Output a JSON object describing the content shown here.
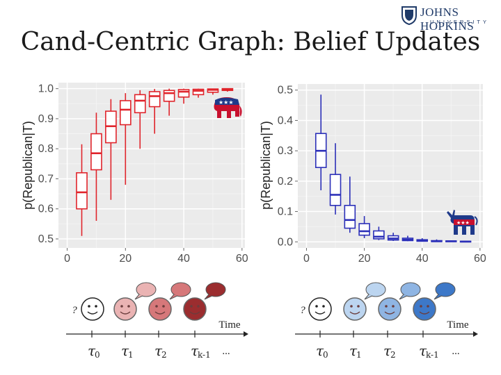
{
  "slide": {
    "title": "Cand-Centric Graph: Belief Updates",
    "logo": {
      "main": "JOHNS HOPKINS",
      "sub": "UNIVERSITY"
    }
  },
  "chart_data": [
    {
      "type": "box",
      "ylabel": "p(Republican|T)",
      "xlabel": "",
      "xlim": [
        -3,
        61
      ],
      "ylim": [
        0.47,
        1.02
      ],
      "xticks": [
        0,
        20,
        40,
        60
      ],
      "yticks": [
        0.5,
        0.6,
        0.7,
        0.8,
        0.9,
        1.0
      ],
      "color": "#e0242b",
      "boxes": [
        {
          "x": 5,
          "min": 0.51,
          "q1": 0.6,
          "median": 0.655,
          "q3": 0.72,
          "max": 0.815
        },
        {
          "x": 10,
          "min": 0.56,
          "q1": 0.73,
          "median": 0.785,
          "q3": 0.85,
          "max": 0.92
        },
        {
          "x": 15,
          "min": 0.63,
          "q1": 0.82,
          "median": 0.875,
          "q3": 0.925,
          "max": 0.965
        },
        {
          "x": 20,
          "min": 0.68,
          "q1": 0.88,
          "median": 0.93,
          "q3": 0.96,
          "max": 0.985
        },
        {
          "x": 25,
          "min": 0.8,
          "q1": 0.92,
          "median": 0.96,
          "q3": 0.98,
          "max": 0.995
        },
        {
          "x": 30,
          "min": 0.85,
          "q1": 0.94,
          "median": 0.975,
          "q3": 0.99,
          "max": 0.999
        },
        {
          "x": 35,
          "min": 0.91,
          "q1": 0.958,
          "median": 0.985,
          "q3": 0.994,
          "max": 1.0
        },
        {
          "x": 40,
          "min": 0.95,
          "q1": 0.972,
          "median": 0.99,
          "q3": 0.997,
          "max": 1.0
        },
        {
          "x": 45,
          "min": 0.97,
          "q1": 0.98,
          "median": 0.993,
          "q3": 0.998,
          "max": 1.0
        },
        {
          "x": 50,
          "min": 0.98,
          "q1": 0.988,
          "median": 0.996,
          "q3": 0.999,
          "max": 1.0
        },
        {
          "x": 55,
          "min": 0.99,
          "q1": 0.994,
          "median": 0.998,
          "q3": 1.0,
          "max": 1.0
        }
      ]
    },
    {
      "type": "box",
      "ylabel": "p(Republican|T)",
      "xlabel": "",
      "xlim": [
        -3,
        61
      ],
      "ylim": [
        -0.02,
        0.52
      ],
      "xticks": [
        0,
        20,
        40,
        60
      ],
      "yticks": [
        0.0,
        0.1,
        0.2,
        0.3,
        0.4,
        0.5
      ],
      "color": "#2b2fb8",
      "boxes": [
        {
          "x": 5,
          "min": 0.17,
          "q1": 0.245,
          "median": 0.3,
          "q3": 0.357,
          "max": 0.485
        },
        {
          "x": 10,
          "min": 0.09,
          "q1": 0.12,
          "median": 0.155,
          "q3": 0.222,
          "max": 0.325
        },
        {
          "x": 15,
          "min": 0.03,
          "q1": 0.045,
          "median": 0.072,
          "q3": 0.12,
          "max": 0.215
        },
        {
          "x": 20,
          "min": 0.012,
          "q1": 0.022,
          "median": 0.035,
          "q3": 0.06,
          "max": 0.085
        },
        {
          "x": 25,
          "min": 0.006,
          "q1": 0.01,
          "median": 0.017,
          "q3": 0.036,
          "max": 0.05
        },
        {
          "x": 30,
          "min": 0.003,
          "q1": 0.006,
          "median": 0.011,
          "q3": 0.02,
          "max": 0.03
        },
        {
          "x": 35,
          "min": 0.002,
          "q1": 0.004,
          "median": 0.007,
          "q3": 0.012,
          "max": 0.02
        },
        {
          "x": 40,
          "min": 0.001,
          "q1": 0.002,
          "median": 0.004,
          "q3": 0.007,
          "max": 0.012
        },
        {
          "x": 45,
          "min": 0.0,
          "q1": 0.001,
          "median": 0.002,
          "q3": 0.004,
          "max": 0.008
        },
        {
          "x": 50,
          "min": 0.0,
          "q1": 0.001,
          "median": 0.002,
          "q3": 0.003,
          "max": 0.005
        },
        {
          "x": 55,
          "min": 0.0,
          "q1": 0.0,
          "median": 0.001,
          "q3": 0.002,
          "max": 0.004
        }
      ]
    }
  ],
  "timelines": [
    {
      "question": "?",
      "time_label": "Time",
      "ellipsis": "...",
      "faces": [
        {
          "color": "#ffffff",
          "bubble": false
        },
        {
          "color": "#eab3b3",
          "bubble": true
        },
        {
          "color": "#d6787a",
          "bubble": true
        },
        {
          "color": "#9b2d2f",
          "bubble": true
        }
      ],
      "taus": [
        {
          "sym": "τ",
          "sub": "0"
        },
        {
          "sym": "τ",
          "sub": "1"
        },
        {
          "sym": "τ",
          "sub": "2"
        },
        {
          "sym": "τ",
          "sub": "k-1"
        }
      ]
    },
    {
      "question": "?",
      "time_label": "Time",
      "ellipsis": "...",
      "faces": [
        {
          "color": "#ffffff",
          "bubble": false
        },
        {
          "color": "#bcd5f0",
          "bubble": true
        },
        {
          "color": "#8fb5e3",
          "bubble": true
        },
        {
          "color": "#3d78c8",
          "bubble": true
        }
      ],
      "taus": [
        {
          "sym": "τ",
          "sub": "0"
        },
        {
          "sym": "τ",
          "sub": "1"
        },
        {
          "sym": "τ",
          "sub": "2"
        },
        {
          "sym": "τ",
          "sub": "k-1"
        }
      ]
    }
  ]
}
